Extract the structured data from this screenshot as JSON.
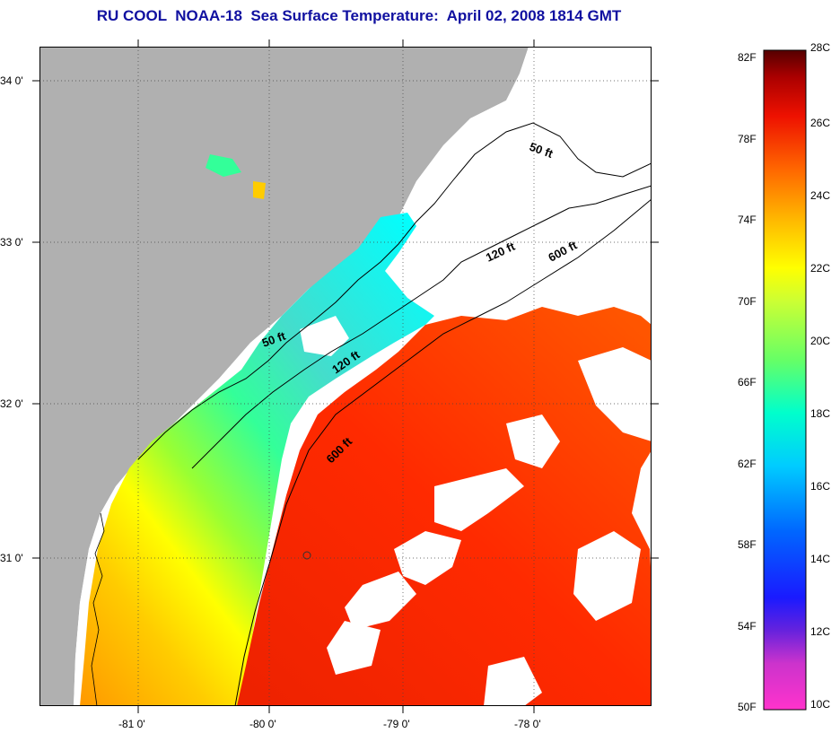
{
  "title": "RU COOL  NOAA-18  Sea Surface Temperature:  April 02, 2008 1814 GMT",
  "map": {
    "lat_labels": [
      "34 0'",
      "33 0'",
      "32 0'",
      "31 0'"
    ],
    "lon_labels": [
      "-81 0'",
      "-80 0'",
      "-79 0'",
      "-78 0'"
    ],
    "contours": [
      {
        "name": "50 ft",
        "label": "50 ft"
      },
      {
        "name": "120 ft",
        "label": "120 ft"
      },
      {
        "name": "600 ft",
        "label": "600 ft"
      },
      {
        "name": "50 ft offshore",
        "label": "50 ft"
      },
      {
        "name": "120 ft offshore",
        "label": "120 ft"
      },
      {
        "name": "600 ft offshore",
        "label": "600 ft"
      }
    ],
    "land_color": "#b0b0b0",
    "cloud_color": "#ffffff"
  },
  "colorbar": {
    "fahrenheit_labels": [
      "82F",
      "78F",
      "74F",
      "70F",
      "66F",
      "62F",
      "58F",
      "54F",
      "50F"
    ],
    "celsius_labels": [
      "28C",
      "26C",
      "24C",
      "22C",
      "20C",
      "18C",
      "16C",
      "14C",
      "12C",
      "10C"
    ],
    "colors": [
      "#ff33cc",
      "#9933cc",
      "#1a1aff",
      "#0099ff",
      "#00ffff",
      "#33ff99",
      "#99ff33",
      "#ffff00",
      "#ffcc00",
      "#ff9900",
      "#ff5500",
      "#ee0000",
      "#a00000",
      "#550000"
    ]
  }
}
